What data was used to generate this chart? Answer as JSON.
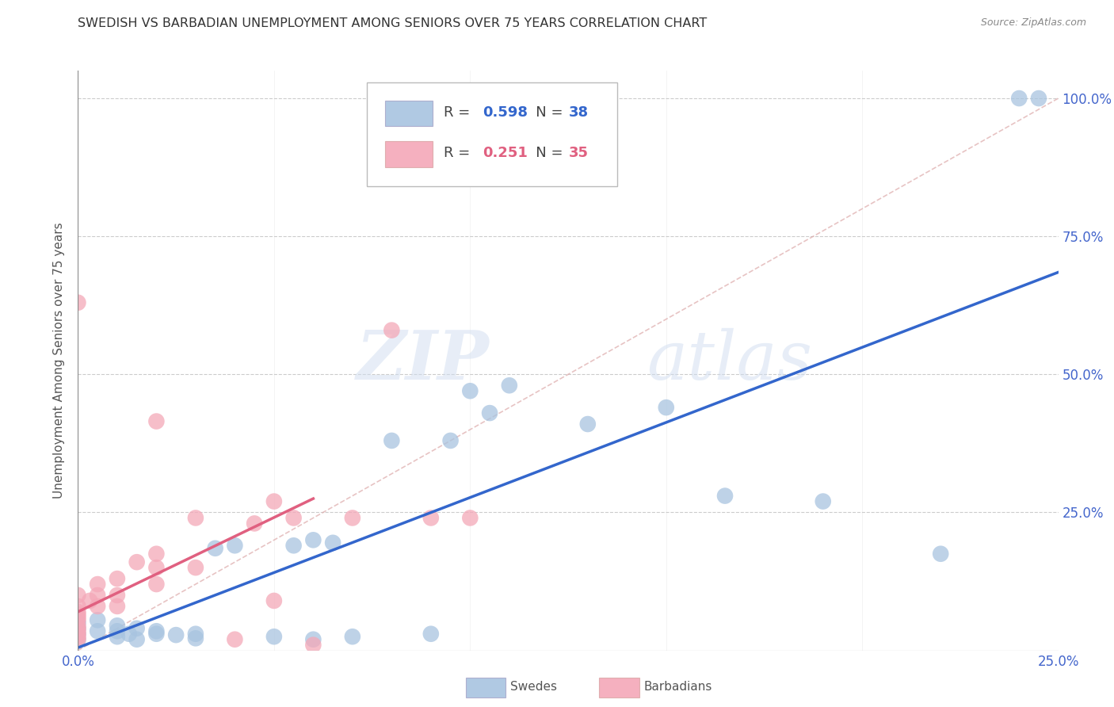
{
  "title": "SWEDISH VS BARBADIAN UNEMPLOYMENT AMONG SENIORS OVER 75 YEARS CORRELATION CHART",
  "source": "Source: ZipAtlas.com",
  "ylabel": "Unemployment Among Seniors over 75 years",
  "xlim": [
    0.0,
    0.25
  ],
  "ylim": [
    0.0,
    1.05
  ],
  "xticks": [
    0.0,
    0.05,
    0.1,
    0.15,
    0.2,
    0.25
  ],
  "yticks": [
    0.25,
    0.5,
    0.75,
    1.0
  ],
  "blue_R": 0.598,
  "blue_N": 38,
  "pink_R": 0.251,
  "pink_N": 35,
  "blue_color": "#a8c4e0",
  "pink_color": "#f4a8b8",
  "blue_line_color": "#3366cc",
  "pink_line_color": "#e06080",
  "grid_color": "#cccccc",
  "axis_label_color": "#4466cc",
  "watermark_zip": "ZIP",
  "watermark_atlas": "atlas",
  "swedes_x": [
    0.0,
    0.0,
    0.0,
    0.0,
    0.005,
    0.005,
    0.01,
    0.01,
    0.01,
    0.013,
    0.015,
    0.015,
    0.02,
    0.02,
    0.025,
    0.03,
    0.03,
    0.035,
    0.04,
    0.05,
    0.055,
    0.06,
    0.06,
    0.065,
    0.07,
    0.08,
    0.09,
    0.095,
    0.1,
    0.105,
    0.11,
    0.13,
    0.15,
    0.165,
    0.19,
    0.22,
    0.24,
    0.245
  ],
  "swedes_y": [
    0.02,
    0.03,
    0.04,
    0.05,
    0.035,
    0.055,
    0.025,
    0.035,
    0.045,
    0.03,
    0.02,
    0.04,
    0.03,
    0.035,
    0.028,
    0.022,
    0.03,
    0.185,
    0.19,
    0.025,
    0.19,
    0.02,
    0.2,
    0.195,
    0.025,
    0.38,
    0.03,
    0.38,
    0.47,
    0.43,
    0.48,
    0.41,
    0.44,
    0.28,
    0.27,
    0.175,
    1.0,
    1.0
  ],
  "barbadians_x": [
    0.0,
    0.0,
    0.0,
    0.0,
    0.0,
    0.0,
    0.0,
    0.0,
    0.0,
    0.0,
    0.0,
    0.0,
    0.003,
    0.005,
    0.005,
    0.005,
    0.01,
    0.01,
    0.01,
    0.015,
    0.02,
    0.02,
    0.02,
    0.03,
    0.03,
    0.04,
    0.045,
    0.05,
    0.05,
    0.055,
    0.06,
    0.07,
    0.08,
    0.09,
    0.1
  ],
  "barbadians_y": [
    0.02,
    0.025,
    0.03,
    0.035,
    0.04,
    0.045,
    0.055,
    0.06,
    0.065,
    0.07,
    0.08,
    0.1,
    0.09,
    0.08,
    0.1,
    0.12,
    0.08,
    0.1,
    0.13,
    0.16,
    0.12,
    0.15,
    0.175,
    0.15,
    0.24,
    0.02,
    0.23,
    0.09,
    0.27,
    0.24,
    0.01,
    0.24,
    0.58,
    0.24,
    0.24
  ],
  "pink_outlier_x": [
    0.0
  ],
  "pink_outlier_y": [
    0.63
  ],
  "pink_outlier2_x": [
    0.02
  ],
  "pink_outlier2_y": [
    0.415
  ],
  "blue_regline_x": [
    0.0,
    0.25
  ],
  "blue_regline_y": [
    0.005,
    0.685
  ],
  "pink_regline_x": [
    0.0,
    0.06
  ],
  "pink_regline_y": [
    0.07,
    0.275
  ]
}
